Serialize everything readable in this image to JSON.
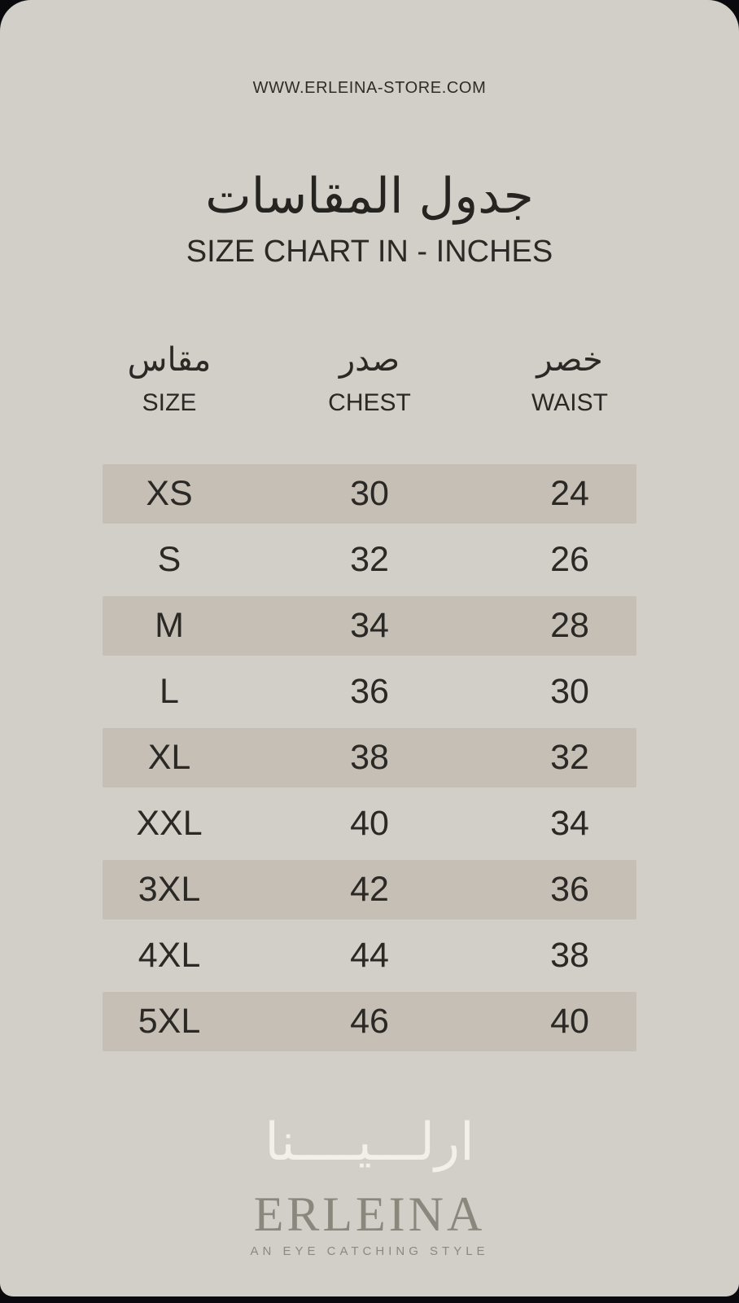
{
  "header": {
    "website": "WWW.ERLEINA-STORE.COM"
  },
  "title": {
    "ar": "جدول المقاسات",
    "en": "SIZE CHART IN - INCHES"
  },
  "table": {
    "columns": [
      {
        "ar": "مقاس",
        "en": "SIZE"
      },
      {
        "ar": "صدر",
        "en": "CHEST"
      },
      {
        "ar": "خصر",
        "en": "WAIST"
      }
    ],
    "rows": [
      {
        "size": "XS",
        "chest": "30",
        "waist": "24"
      },
      {
        "size": "S",
        "chest": "32",
        "waist": "26"
      },
      {
        "size": "M",
        "chest": "34",
        "waist": "28"
      },
      {
        "size": "L",
        "chest": "36",
        "waist": "30"
      },
      {
        "size": "XL",
        "chest": "38",
        "waist": "32"
      },
      {
        "size": "XXL",
        "chest": "40",
        "waist": "34"
      },
      {
        "size": "3XL",
        "chest": "42",
        "waist": "36"
      },
      {
        "size": "4XL",
        "chest": "44",
        "waist": "38"
      },
      {
        "size": "5XL",
        "chest": "46",
        "waist": "40"
      }
    ],
    "unit": "INCHES"
  },
  "footer": {
    "logo_ar": "ارلـــيــــنا",
    "logo_en": "ERLEINA",
    "tagline": "AN EYE CATCHING STYLE"
  },
  "colors": {
    "card_background": "#d2cfc8",
    "shaded_row": "#c6bfb6",
    "text": "#2b2925",
    "outer_background": "#0a0a0e",
    "logo_arabic_cream": "#f2f0e9",
    "logo_serif_gray": "#8c877d"
  }
}
